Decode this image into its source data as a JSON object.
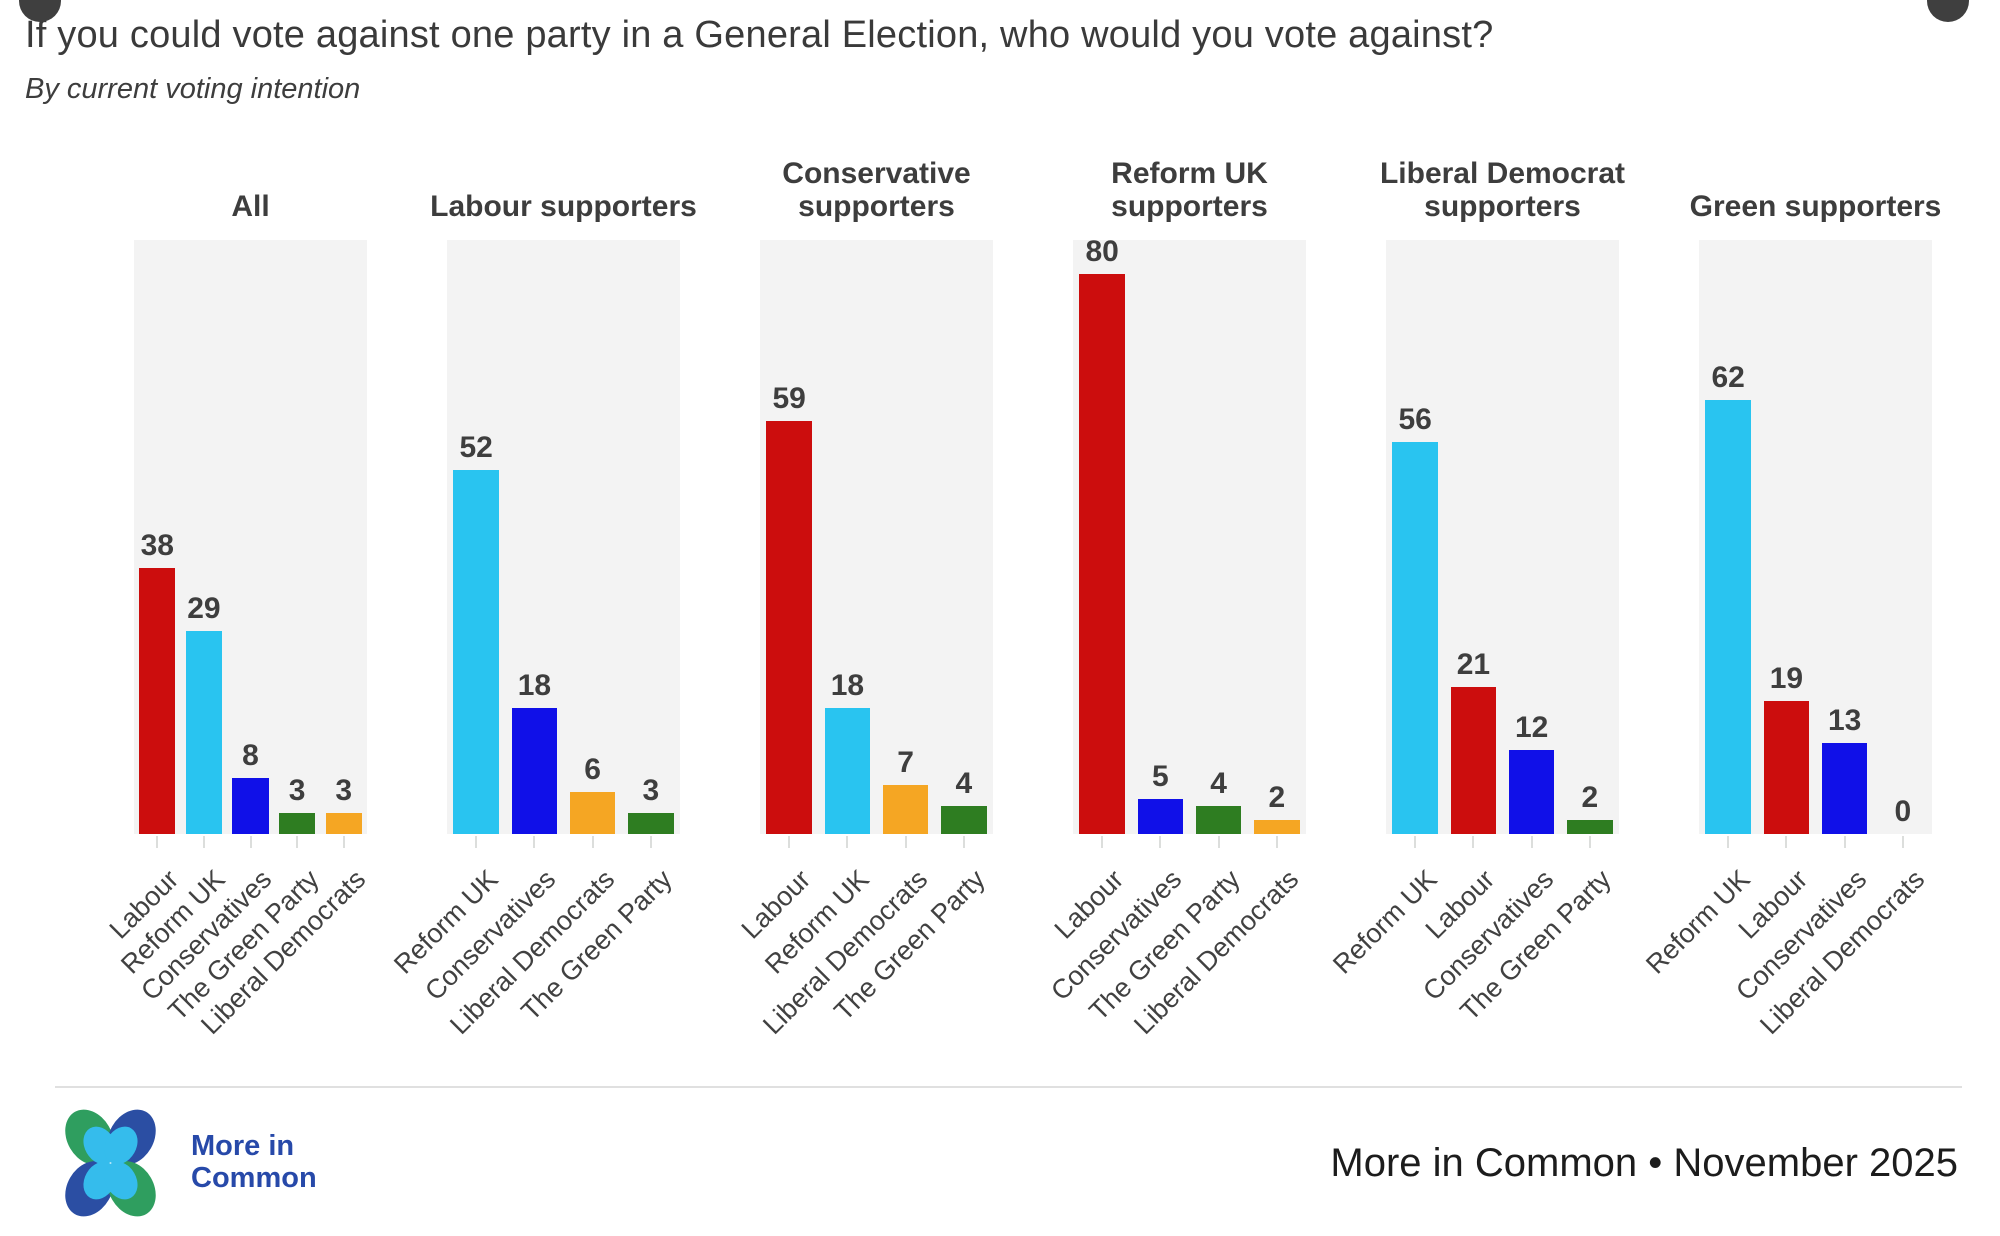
{
  "header": {
    "title": "If you could vote against one party in a General Election, who would you vote against?",
    "subtitle": "By current voting intention"
  },
  "chart_data": {
    "type": "bar",
    "title": "If you could vote against one party in a General Election, who would you vote against?",
    "subtitle": "By current voting intention",
    "unit": "percent",
    "ylim": [
      0,
      84
    ],
    "grid": false,
    "legend": "none",
    "party_colors": {
      "labour": "#cc0d0d",
      "reform": "#29c4f0",
      "conservative": "#1010e8",
      "green": "#2e7d21",
      "libdem": "#f5a623"
    },
    "panels": [
      {
        "title": "All",
        "categories": [
          "Labour",
          "Reform UK",
          "Conservatives",
          "The Green Party",
          "Liberal Democrats"
        ],
        "values": [
          38,
          29,
          8,
          3,
          3
        ],
        "parties": [
          "labour",
          "reform",
          "conservative",
          "green",
          "libdem"
        ]
      },
      {
        "title": "Labour supporters",
        "categories": [
          "Reform UK",
          "Conservatives",
          "Liberal Democrats",
          "The Green Party"
        ],
        "values": [
          52,
          18,
          6,
          3
        ],
        "parties": [
          "reform",
          "conservative",
          "libdem",
          "green"
        ]
      },
      {
        "title": "Conservative supporters",
        "categories": [
          "Labour",
          "Reform UK",
          "Liberal Democrats",
          "The Green Party"
        ],
        "values": [
          59,
          18,
          7,
          4
        ],
        "parties": [
          "labour",
          "reform",
          "libdem",
          "green"
        ]
      },
      {
        "title": "Reform UK supporters",
        "categories": [
          "Labour",
          "Conservatives",
          "The Green Party",
          "Liberal Democrats"
        ],
        "values": [
          80,
          5,
          4,
          2
        ],
        "parties": [
          "labour",
          "conservative",
          "green",
          "libdem"
        ]
      },
      {
        "title": "Liberal Democrat supporters",
        "categories": [
          "Reform UK",
          "Labour",
          "Conservatives",
          "The Green Party"
        ],
        "values": [
          56,
          21,
          12,
          2
        ],
        "parties": [
          "reform",
          "labour",
          "conservative",
          "green"
        ]
      },
      {
        "title": "Green supporters",
        "categories": [
          "Reform UK",
          "Labour",
          "Conservatives",
          "Liberal Democrats"
        ],
        "values": [
          62,
          19,
          13,
          0
        ],
        "parties": [
          "reform",
          "labour",
          "conservative",
          "libdem"
        ]
      }
    ]
  },
  "footer": {
    "brand_line1": "More in",
    "brand_line2": "Common",
    "attribution": "More in Common • November 2025",
    "brand_color": "#2749a9",
    "logo_colors": {
      "green": "#2f9e5f",
      "dark_blue": "#2b4ea3",
      "light_blue": "#35bcec"
    }
  }
}
